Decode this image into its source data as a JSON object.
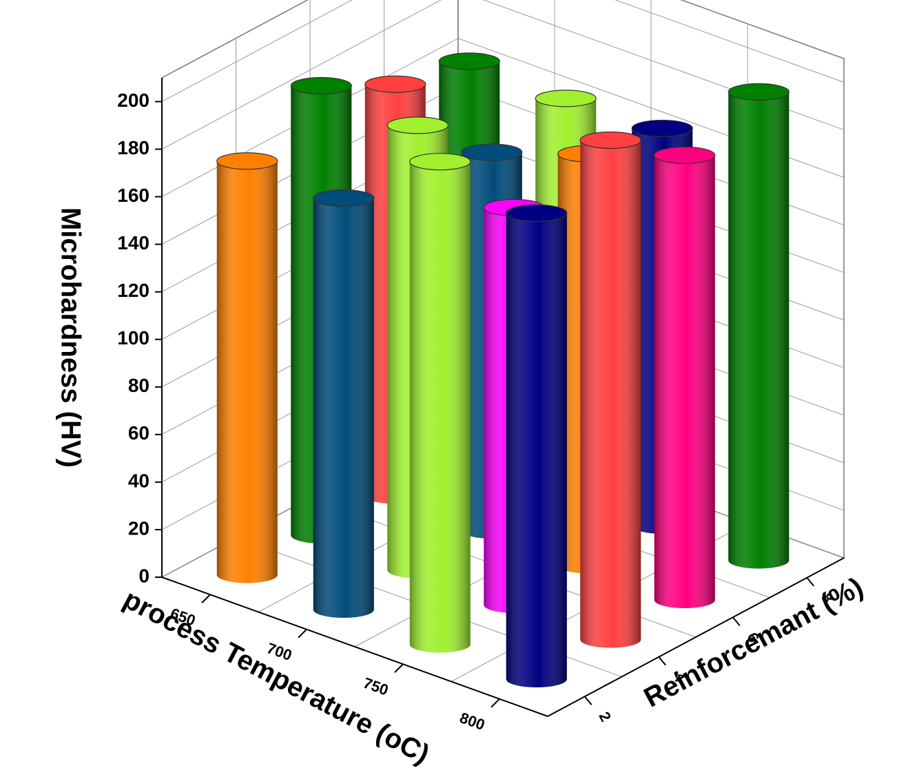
{
  "chart_data": {
    "type": "bar3d",
    "ylabel": "Microhardness (HV)",
    "xlabel": "process Temperature (oC)",
    "zlabel": "Reinforcemant (%)",
    "x_categories": [
      "650",
      "700",
      "750",
      "800"
    ],
    "z_categories": [
      "2",
      "4",
      "6",
      "8"
    ],
    "values": [
      [
        174,
        189,
        173,
        166
      ],
      [
        173,
        187,
        159,
        165
      ],
      [
        203,
        167,
        173,
        167
      ],
      [
        196,
        210,
        187,
        197
      ]
    ],
    "colors": [
      [
        "#ff8000",
        "#008000",
        "#ff4040",
        "#008000"
      ],
      [
        "#004c7a",
        "#a0f030",
        "#004c7a",
        "#a0f030"
      ],
      [
        "#a0f030",
        "#ff00ff",
        "#ff8000",
        "#000080"
      ],
      [
        "#000080",
        "#ff4040",
        "#ff0080",
        "#008000"
      ]
    ],
    "ylim": [
      0,
      210
    ],
    "yticks": [
      0,
      20,
      40,
      60,
      80,
      100,
      120,
      140,
      160,
      180,
      200
    ],
    "grid": true
  }
}
